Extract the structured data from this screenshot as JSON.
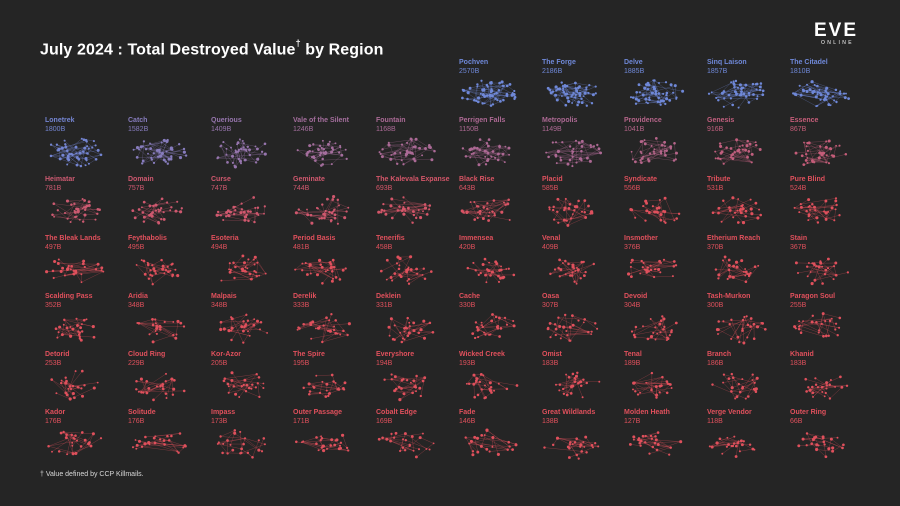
{
  "title": "July 2024 : Total Destroyed Value",
  "title_mark": "†",
  "title_suffix": "by Region",
  "logo": {
    "word": "EVE",
    "sub": "ONLINE"
  },
  "footnote": "† Value defined by CCP Killmails.",
  "colors": {
    "background": "#252525",
    "nullsec": "#6f88d8",
    "lowsec": "#e0505c"
  },
  "chart_data": {
    "type": "bar",
    "title": "July 2024 : Total Destroyed Value† by Region",
    "unit": "B",
    "categories": [
      "Pochven",
      "The Forge",
      "Delve",
      "Sinq Laison",
      "The Citadel",
      "Lonetrek",
      "Catch",
      "Querious",
      "Vale of the Silent",
      "Fountain",
      "Perrigen Falls",
      "Metropolis",
      "Providence",
      "Genesis",
      "Essence",
      "Heimatar",
      "Domain",
      "Curse",
      "Geminate",
      "The Kalevala Expanse",
      "Black Rise",
      "Placid",
      "Syndicate",
      "Tribute",
      "Pure Blind",
      "The Bleak Lands",
      "Feythabolis",
      "Esoteria",
      "Period Basis",
      "Tenerifis",
      "Immensea",
      "Venal",
      "Insmother",
      "Etherium Reach",
      "Stain",
      "Scalding Pass",
      "Aridia",
      "Malpais",
      "Derelik",
      "Deklein",
      "Cache",
      "Oasa",
      "Devoid",
      "Tash-Murkon",
      "Paragon Soul",
      "Detorid",
      "Cloud Ring",
      "Kor-Azor",
      "The Spire",
      "Everyshore",
      "Wicked Creek",
      "Omist",
      "Tenal",
      "Branch",
      "Khanid",
      "Kador",
      "Solitude",
      "Impass",
      "Outer Passage",
      "Cobalt Edge",
      "Fade",
      "Great Wildlands",
      "Molden Heath",
      "Verge Vendor",
      "Outer Ring"
    ],
    "values": [
      2570,
      2186,
      1885,
      1857,
      1810,
      1800,
      1582,
      1409,
      1246,
      1168,
      1150,
      1149,
      1041,
      916,
      867,
      781,
      757,
      747,
      744,
      693,
      643,
      585,
      556,
      531,
      524,
      497,
      495,
      494,
      481,
      458,
      420,
      409,
      376,
      370,
      367,
      352,
      348,
      348,
      333,
      331,
      330,
      307,
      304,
      300,
      255,
      253,
      229,
      205,
      195,
      194,
      193,
      183,
      189,
      186,
      183,
      176,
      176,
      173,
      171,
      169,
      146,
      138,
      127,
      118,
      66
    ],
    "value_labels": [
      "2570B",
      "2186B",
      "1885B",
      "1857B",
      "1810B",
      "1800B",
      "1582B",
      "1409B",
      "1246B",
      "1168B",
      "1150B",
      "1149B",
      "1041B",
      "916B",
      "867B",
      "781B",
      "757B",
      "747B",
      "744B",
      "693B",
      "643B",
      "585B",
      "556B",
      "531B",
      "524B",
      "497B",
      "495B",
      "494B",
      "481B",
      "458B",
      "420B",
      "409B",
      "376B",
      "370B",
      "367B",
      "352B",
      "348B",
      "348B",
      "333B",
      "331B",
      "330B",
      "307B",
      "304B",
      "300B",
      "255B",
      "253B",
      "229B",
      "205B",
      "195B",
      "194B",
      "193B",
      "183B",
      "189B",
      "186B",
      "183B",
      "176B",
      "176B",
      "173B",
      "171B",
      "169B",
      "146B",
      "138B",
      "127B",
      "118B",
      "66B"
    ]
  }
}
